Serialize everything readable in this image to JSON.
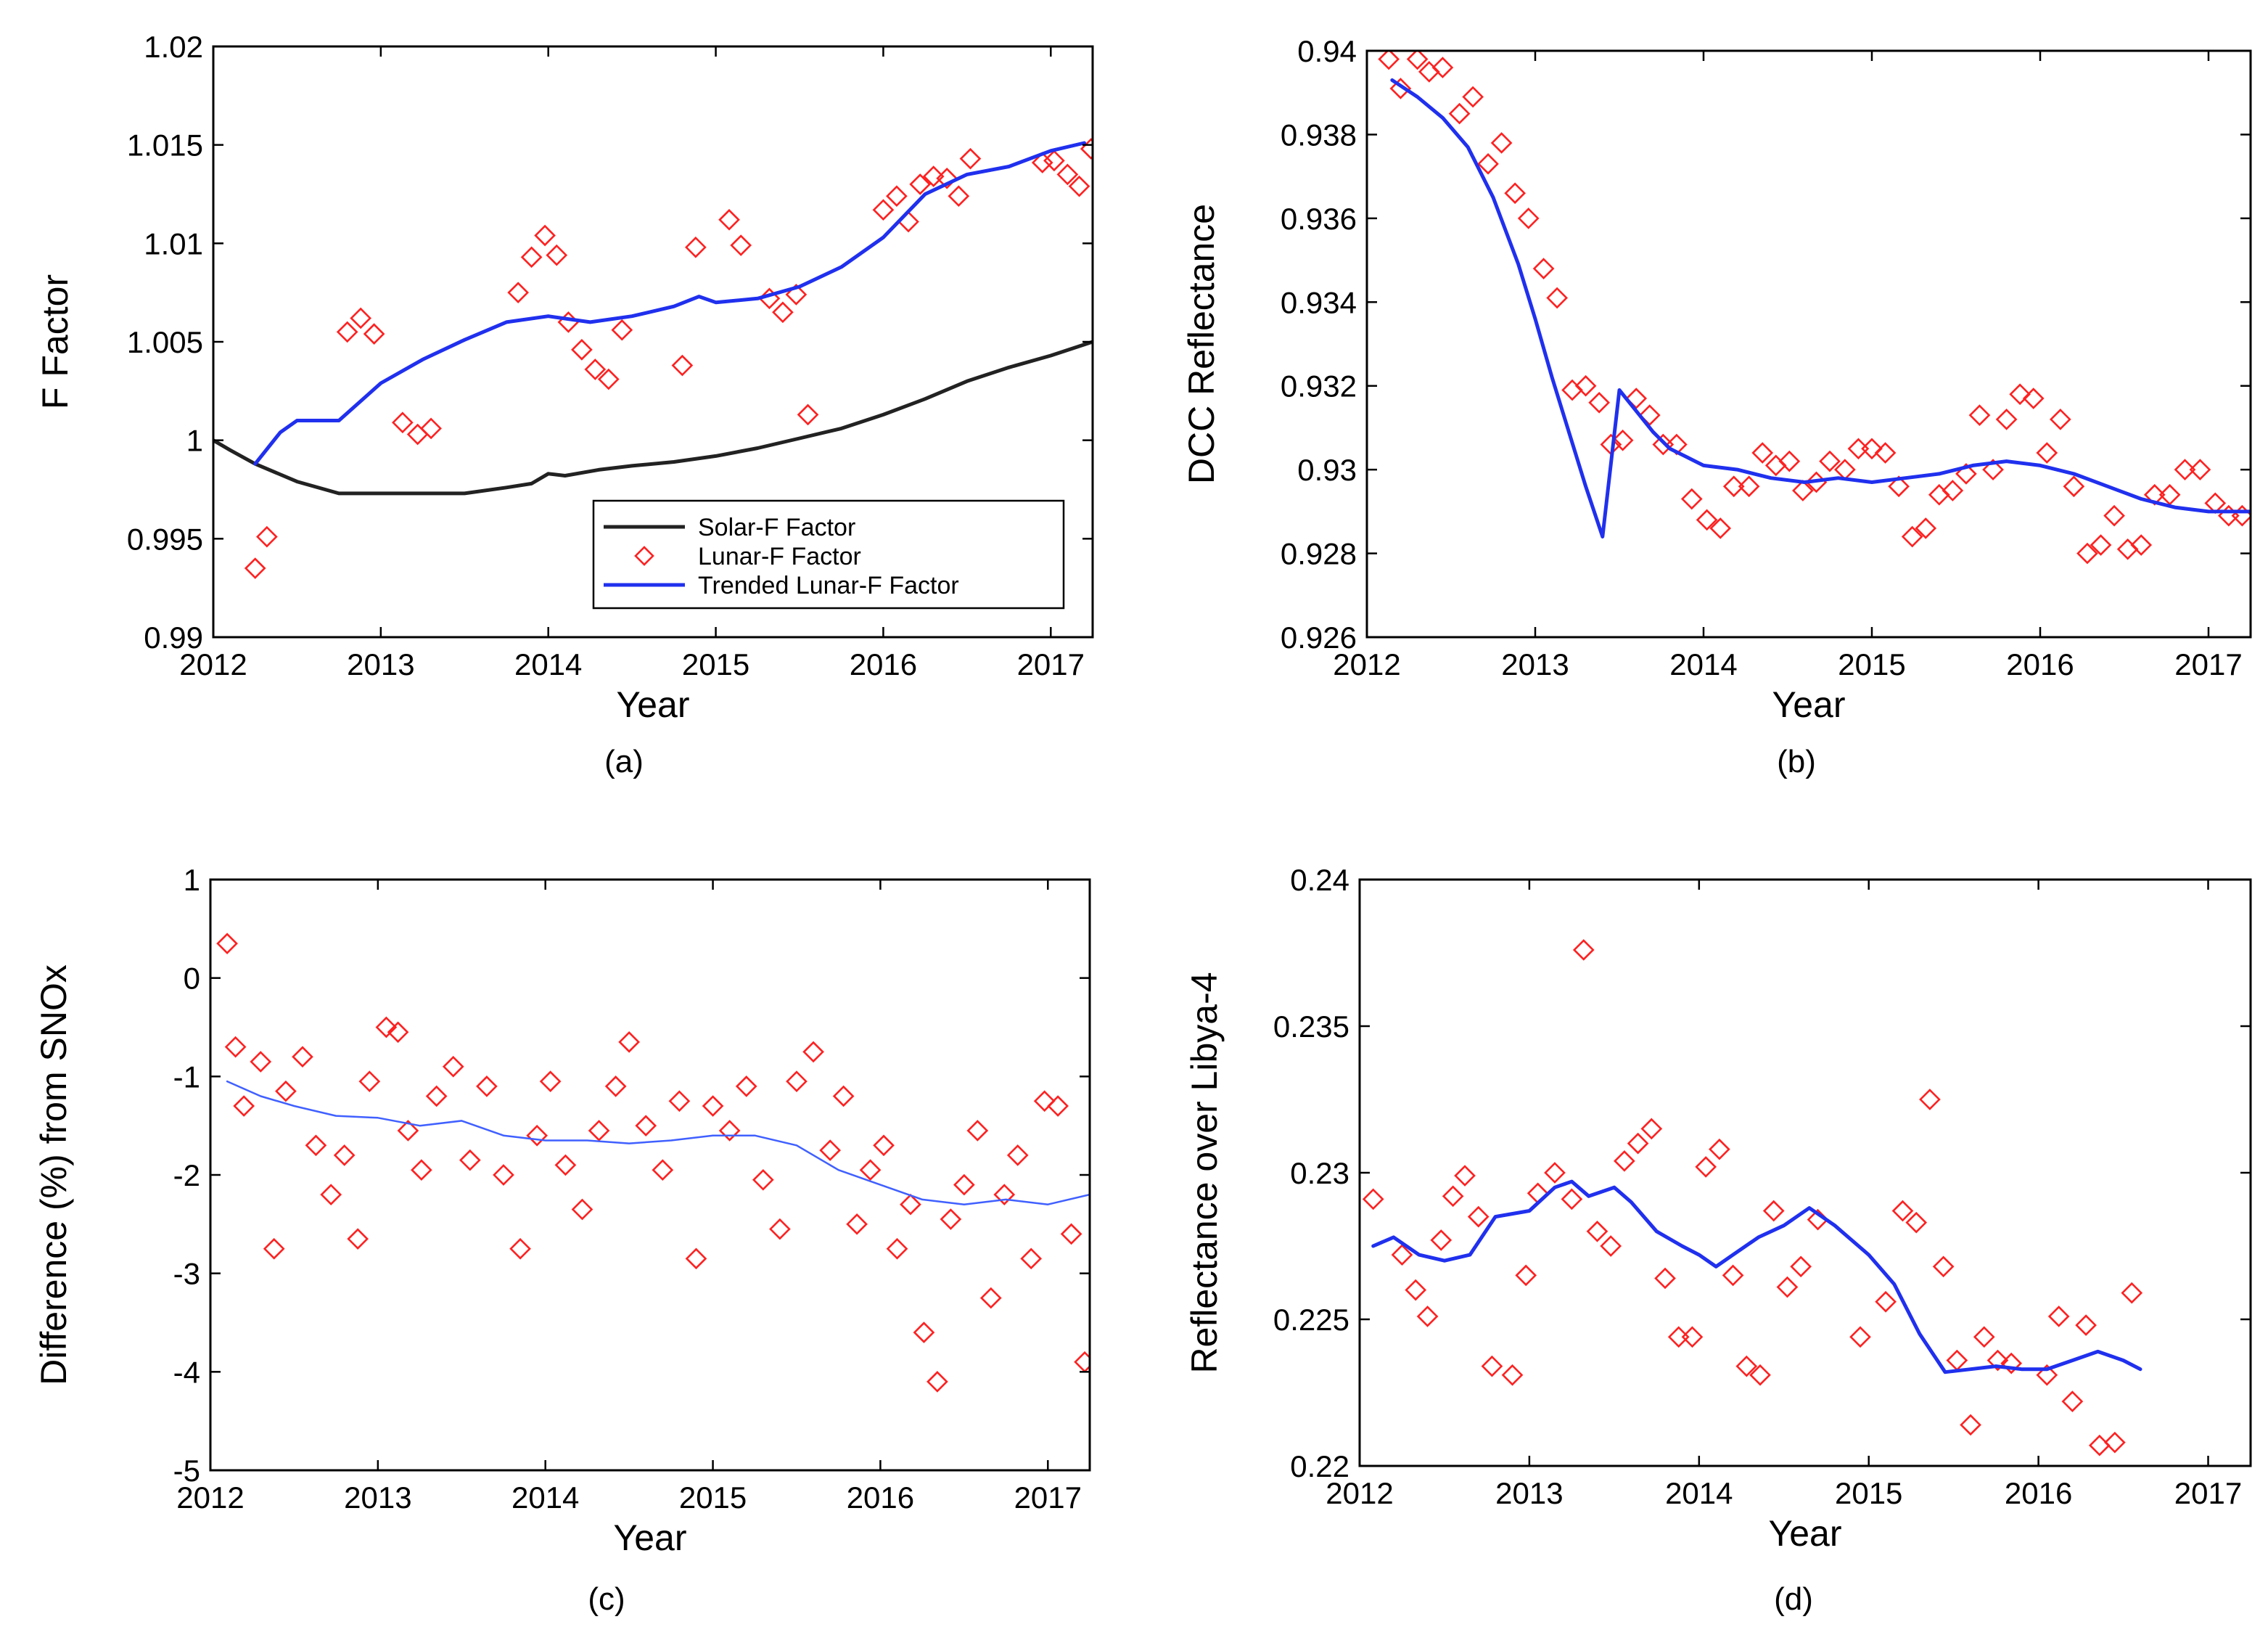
{
  "chart_data": [
    {
      "id": "a",
      "type": "line",
      "caption": "(a)",
      "xlabel": "Year",
      "ylabel": "F Factor",
      "xlim": [
        2012,
        2017.25
      ],
      "ylim": [
        0.99,
        1.02
      ],
      "xticks": [
        2012,
        2013,
        2014,
        2015,
        2016,
        2017
      ],
      "xtick_labels": [
        "2012",
        "2013",
        "2014",
        "2015",
        "2016",
        "2017"
      ],
      "yticks": [
        0.99,
        0.995,
        1.0,
        1.005,
        1.01,
        1.015,
        1.02
      ],
      "ytick_labels": [
        "0.99",
        "0.995",
        "1",
        "1.005",
        "1.01",
        "1.015",
        "1.02"
      ],
      "legend": {
        "position": "lower-right",
        "entries": [
          "Solar-F Factor",
          "Lunar-F Factor",
          "Trended Lunar-F Factor"
        ]
      },
      "series": [
        {
          "name": "Solar-F Factor",
          "kind": "line",
          "color": "#222222",
          "x": [
            2012.0,
            2012.1,
            2012.25,
            2012.5,
            2012.75,
            2013.0,
            2013.25,
            2013.5,
            2013.75,
            2013.9,
            2014.0,
            2014.1,
            2014.3,
            2014.5,
            2014.75,
            2015.0,
            2015.25,
            2015.5,
            2015.75,
            2016.0,
            2016.25,
            2016.5,
            2016.75,
            2017.0,
            2017.25
          ],
          "y": [
            1.0,
            0.9995,
            0.9988,
            0.9979,
            0.9973,
            0.9973,
            0.9973,
            0.9973,
            0.9976,
            0.9978,
            0.9983,
            0.9982,
            0.9985,
            0.9987,
            0.9989,
            0.9992,
            0.9996,
            1.0001,
            1.0006,
            1.0013,
            1.0021,
            1.003,
            1.0037,
            1.0043,
            1.005
          ]
        },
        {
          "name": "Lunar-F Factor",
          "kind": "scatter",
          "color": "#ff2020",
          "x": [
            2012.25,
            2012.32,
            2012.8,
            2012.88,
            2012.96,
            2013.13,
            2013.22,
            2013.3,
            2013.82,
            2013.9,
            2013.98,
            2014.05,
            2014.12,
            2014.2,
            2014.28,
            2014.36,
            2014.44,
            2014.8,
            2014.88,
            2015.08,
            2015.15,
            2015.32,
            2015.4,
            2015.48,
            2015.55,
            2016.0,
            2016.08,
            2016.15,
            2016.22,
            2016.3,
            2016.38,
            2016.45,
            2016.52,
            2016.95,
            2017.02,
            2017.1,
            2017.17,
            2017.24
          ],
          "y": [
            0.9935,
            0.9951,
            1.0055,
            1.0062,
            1.0054,
            1.0009,
            1.0003,
            1.0006,
            1.0075,
            1.0093,
            1.0104,
            1.0094,
            1.006,
            1.0046,
            1.0036,
            1.0031,
            1.0056,
            1.0038,
            1.0098,
            1.0112,
            1.0099,
            1.0072,
            1.0065,
            1.0074,
            1.0013,
            1.0117,
            1.0124,
            1.0111,
            1.013,
            1.0134,
            1.0133,
            1.0124,
            1.0143,
            1.0141,
            1.0142,
            1.0135,
            1.0129,
            1.0148
          ]
        },
        {
          "name": "Trended Lunar-F Factor",
          "kind": "line",
          "color": "#2030ee",
          "x": [
            2012.25,
            2012.4,
            2012.5,
            2012.75,
            2013.0,
            2013.25,
            2013.5,
            2013.75,
            2014.0,
            2014.25,
            2014.5,
            2014.75,
            2014.9,
            2015.0,
            2015.25,
            2015.5,
            2015.75,
            2016.0,
            2016.25,
            2016.5,
            2016.75,
            2017.0,
            2017.2
          ],
          "y": [
            0.9988,
            1.0004,
            1.001,
            1.001,
            1.0029,
            1.0041,
            1.0051,
            1.006,
            1.0063,
            1.006,
            1.0063,
            1.0068,
            1.0073,
            1.007,
            1.0072,
            1.0078,
            1.0088,
            1.0103,
            1.0125,
            1.0135,
            1.0139,
            1.0147,
            1.0151
          ]
        }
      ]
    },
    {
      "id": "b",
      "type": "line",
      "caption": "(b)",
      "xlabel": "Year",
      "ylabel": "DCC Reflectance",
      "xlim": [
        2012,
        2017.25
      ],
      "ylim": [
        0.926,
        0.94
      ],
      "xticks": [
        2012,
        2013,
        2014,
        2015,
        2016,
        2017
      ],
      "xtick_labels": [
        "2012",
        "2013",
        "2014",
        "2015",
        "2016",
        "2017"
      ],
      "yticks": [
        0.926,
        0.928,
        0.93,
        0.932,
        0.934,
        0.936,
        0.938,
        0.94
      ],
      "ytick_labels": [
        "0.926",
        "0.928",
        "0.93",
        "0.932",
        "0.934",
        "0.936",
        "0.938",
        "0.94"
      ],
      "series": [
        {
          "name": "DCC Reflectance",
          "kind": "scatter",
          "color": "#ff2020",
          "x": [
            2012.13,
            2012.2,
            2012.3,
            2012.37,
            2012.45,
            2012.55,
            2012.63,
            2012.72,
            2012.8,
            2012.88,
            2012.96,
            2013.05,
            2013.13,
            2013.22,
            2013.3,
            2013.38,
            2013.45,
            2013.52,
            2013.6,
            2013.68,
            2013.76,
            2013.84,
            2013.93,
            2014.02,
            2014.1,
            2014.18,
            2014.27,
            2014.35,
            2014.43,
            2014.51,
            2014.59,
            2014.67,
            2014.75,
            2014.84,
            2014.92,
            2015.0,
            2015.08,
            2015.16,
            2015.24,
            2015.32,
            2015.4,
            2015.48,
            2015.56,
            2015.64,
            2015.72,
            2015.8,
            2015.88,
            2015.96,
            2016.04,
            2016.12,
            2016.2,
            2016.28,
            2016.36,
            2016.44,
            2016.52,
            2016.6,
            2016.68,
            2016.77,
            2016.86,
            2016.95,
            2017.04,
            2017.12,
            2017.2
          ],
          "y": [
            0.9398,
            0.9391,
            0.9398,
            0.9395,
            0.9396,
            0.9385,
            0.9389,
            0.9373,
            0.9378,
            0.9366,
            0.936,
            0.9348,
            0.9341,
            0.9319,
            0.932,
            0.9316,
            0.9306,
            0.9307,
            0.9317,
            0.9313,
            0.9306,
            0.9306,
            0.9293,
            0.9288,
            0.9286,
            0.9296,
            0.9296,
            0.9304,
            0.9301,
            0.9302,
            0.9295,
            0.9297,
            0.9302,
            0.93,
            0.9305,
            0.9305,
            0.9304,
            0.9296,
            0.9284,
            0.9286,
            0.9294,
            0.9295,
            0.9299,
            0.9313,
            0.93,
            0.9312,
            0.9318,
            0.9317,
            0.9304,
            0.9312,
            0.9296,
            0.928,
            0.9282,
            0.9289,
            0.9281,
            0.9282,
            0.9294,
            0.9294,
            0.93,
            0.93,
            0.9292,
            0.9289,
            0.9289
          ]
        },
        {
          "name": "Trend",
          "kind": "line",
          "color": "#2030ee",
          "x": [
            2012.15,
            2012.3,
            2012.45,
            2012.6,
            2012.75,
            2012.9,
            2013.0,
            2013.1,
            2013.2,
            2013.3,
            2013.4,
            2013.5,
            2013.6,
            2013.7,
            2013.8,
            2013.9,
            2014.0,
            2014.2,
            2014.4,
            2014.6,
            2014.8,
            2015.0,
            2015.2,
            2015.4,
            2015.6,
            2015.8,
            2016.0,
            2016.2,
            2016.4,
            2016.6,
            2016.8,
            2017.0,
            2017.25
          ],
          "y": [
            0.9393,
            0.9389,
            0.9384,
            0.9377,
            0.9365,
            0.9349,
            0.9336,
            0.9322,
            0.9309,
            0.9296,
            0.9284,
            0.9319,
            0.9314,
            0.9309,
            0.9305,
            0.9303,
            0.9301,
            0.93,
            0.9298,
            0.9297,
            0.9298,
            0.9297,
            0.9298,
            0.9299,
            0.9301,
            0.9302,
            0.9301,
            0.9299,
            0.9296,
            0.9293,
            0.9291,
            0.929,
            0.929
          ]
        }
      ]
    },
    {
      "id": "c",
      "type": "line",
      "caption": "(c)",
      "xlabel": "Year",
      "ylabel": "Difference (%) from SNOx",
      "xlim": [
        2012,
        2017.25
      ],
      "ylim": [
        -5,
        1
      ],
      "xticks": [
        2012,
        2013,
        2014,
        2015,
        2016,
        2017
      ],
      "xtick_labels": [
        "2012",
        "2013",
        "2014",
        "2015",
        "2016",
        "2017"
      ],
      "yticks": [
        -5,
        -4,
        -3,
        -2,
        -1,
        0,
        1
      ],
      "ytick_labels": [
        "-5",
        "-4",
        "-3",
        "-2",
        "-1",
        "0",
        "1"
      ],
      "series": [
        {
          "name": "Difference",
          "kind": "scatter",
          "color": "#ff2020",
          "x": [
            2012.1,
            2012.15,
            2012.2,
            2012.3,
            2012.38,
            2012.45,
            2012.55,
            2012.63,
            2012.72,
            2012.8,
            2012.88,
            2012.95,
            2013.05,
            2013.12,
            2013.18,
            2013.26,
            2013.35,
            2013.45,
            2013.55,
            2013.65,
            2013.75,
            2013.85,
            2013.95,
            2014.03,
            2014.12,
            2014.22,
            2014.32,
            2014.42,
            2014.5,
            2014.6,
            2014.7,
            2014.8,
            2014.9,
            2015.0,
            2015.1,
            2015.2,
            2015.3,
            2015.4,
            2015.5,
            2015.6,
            2015.7,
            2015.78,
            2015.86,
            2015.94,
            2016.02,
            2016.1,
            2016.18,
            2016.26,
            2016.34,
            2016.42,
            2016.5,
            2016.58,
            2016.66,
            2016.74,
            2016.82,
            2016.9,
            2016.98,
            2017.06,
            2017.14,
            2017.22
          ],
          "y": [
            0.35,
            -0.7,
            -1.3,
            -0.85,
            -2.75,
            -1.15,
            -0.8,
            -1.7,
            -2.2,
            -1.8,
            -2.65,
            -1.05,
            -0.5,
            -0.55,
            -1.55,
            -1.95,
            -1.2,
            -0.9,
            -1.85,
            -1.1,
            -2.0,
            -2.75,
            -1.6,
            -1.05,
            -1.9,
            -2.35,
            -1.55,
            -1.1,
            -0.65,
            -1.5,
            -1.95,
            -1.25,
            -2.85,
            -1.3,
            -1.55,
            -1.1,
            -2.05,
            -2.55,
            -1.05,
            -0.75,
            -1.75,
            -1.2,
            -2.5,
            -1.95,
            -1.7,
            -2.75,
            -2.3,
            -3.6,
            -4.1,
            -2.45,
            -2.1,
            -1.55,
            -3.25,
            -2.2,
            -1.8,
            -2.85,
            -1.25,
            -1.3,
            -2.6,
            -3.9
          ]
        },
        {
          "name": "Trend",
          "kind": "line",
          "color": "#4060ff",
          "x": [
            2012.1,
            2012.3,
            2012.5,
            2012.75,
            2013.0,
            2013.25,
            2013.5,
            2013.75,
            2014.0,
            2014.25,
            2014.5,
            2014.75,
            2015.0,
            2015.25,
            2015.5,
            2015.75,
            2016.0,
            2016.25,
            2016.5,
            2016.75,
            2017.0,
            2017.25
          ],
          "y": [
            -1.05,
            -1.2,
            -1.3,
            -1.4,
            -1.42,
            -1.5,
            -1.45,
            -1.6,
            -1.65,
            -1.65,
            -1.68,
            -1.65,
            -1.6,
            -1.6,
            -1.7,
            -1.95,
            -2.1,
            -2.25,
            -2.3,
            -2.25,
            -2.3,
            -2.2
          ]
        }
      ]
    },
    {
      "id": "d",
      "type": "line",
      "caption": "(d)",
      "xlabel": "Year",
      "ylabel": "Reflectance over Libya-4",
      "xlim": [
        2012,
        2017.25
      ],
      "ylim": [
        0.22,
        0.24
      ],
      "xticks": [
        2012,
        2013,
        2014,
        2015,
        2016,
        2017
      ],
      "xtick_labels": [
        "2012",
        "2013",
        "2014",
        "2015",
        "2016",
        "2017"
      ],
      "yticks": [
        0.22,
        0.225,
        0.23,
        0.235,
        0.24
      ],
      "ytick_labels": [
        "0.22",
        "0.225",
        "0.23",
        "0.235",
        "0.24"
      ],
      "series": [
        {
          "name": "Reflectance",
          "kind": "scatter",
          "color": "#ff2020",
          "x": [
            2012.08,
            2012.25,
            2012.33,
            2012.4,
            2012.48,
            2012.55,
            2012.62,
            2012.7,
            2012.78,
            2012.9,
            2012.98,
            2013.05,
            2013.15,
            2013.25,
            2013.32,
            2013.4,
            2013.48,
            2013.56,
            2013.64,
            2013.72,
            2013.8,
            2013.88,
            2013.96,
            2014.04,
            2014.12,
            2014.2,
            2014.28,
            2014.36,
            2014.44,
            2014.52,
            2014.6,
            2014.7,
            2014.95,
            2015.1,
            2015.2,
            2015.28,
            2015.36,
            2015.44,
            2015.52,
            2015.6,
            2015.68,
            2015.76,
            2015.84,
            2016.05,
            2016.12,
            2016.2,
            2016.28,
            2016.36,
            2016.45,
            2016.55
          ],
          "y": [
            0.2291,
            0.2272,
            0.226,
            0.2251,
            0.2277,
            0.2292,
            0.2299,
            0.2285,
            0.2234,
            0.2231,
            0.2265,
            0.2293,
            0.23,
            0.2291,
            0.2376,
            0.228,
            0.2275,
            0.2304,
            0.231,
            0.2315,
            0.2264,
            0.2244,
            0.2244,
            0.2302,
            0.2308,
            0.2265,
            0.2234,
            0.2231,
            0.2287,
            0.2261,
            0.2268,
            0.2284,
            0.2244,
            0.2256,
            0.2287,
            0.2283,
            0.2325,
            0.2268,
            0.2236,
            0.2214,
            0.2244,
            0.2236,
            0.2235,
            0.2231,
            0.2251,
            0.2222,
            0.2248,
            0.2207,
            0.2208,
            0.2259
          ]
        },
        {
          "name": "Trend",
          "kind": "line",
          "color": "#2030ee",
          "x": [
            2012.08,
            2012.2,
            2012.35,
            2012.5,
            2012.65,
            2012.8,
            2013.0,
            2013.15,
            2013.25,
            2013.35,
            2013.5,
            2013.6,
            2013.75,
            2013.9,
            2014.0,
            2014.1,
            2014.2,
            2014.35,
            2014.5,
            2014.65,
            2014.8,
            2015.0,
            2015.15,
            2015.3,
            2015.45,
            2015.6,
            2015.75,
            2015.9,
            2016.05,
            2016.2,
            2016.35,
            2016.5,
            2016.6
          ],
          "y": [
            0.2275,
            0.2278,
            0.2272,
            0.227,
            0.2272,
            0.2285,
            0.2287,
            0.2295,
            0.2297,
            0.2292,
            0.2295,
            0.229,
            0.228,
            0.2275,
            0.2272,
            0.2268,
            0.2272,
            0.2278,
            0.2282,
            0.2288,
            0.2282,
            0.2272,
            0.2262,
            0.2245,
            0.2232,
            0.2233,
            0.2234,
            0.2233,
            0.2233,
            0.2236,
            0.2239,
            0.2236,
            0.2233
          ]
        }
      ]
    }
  ]
}
